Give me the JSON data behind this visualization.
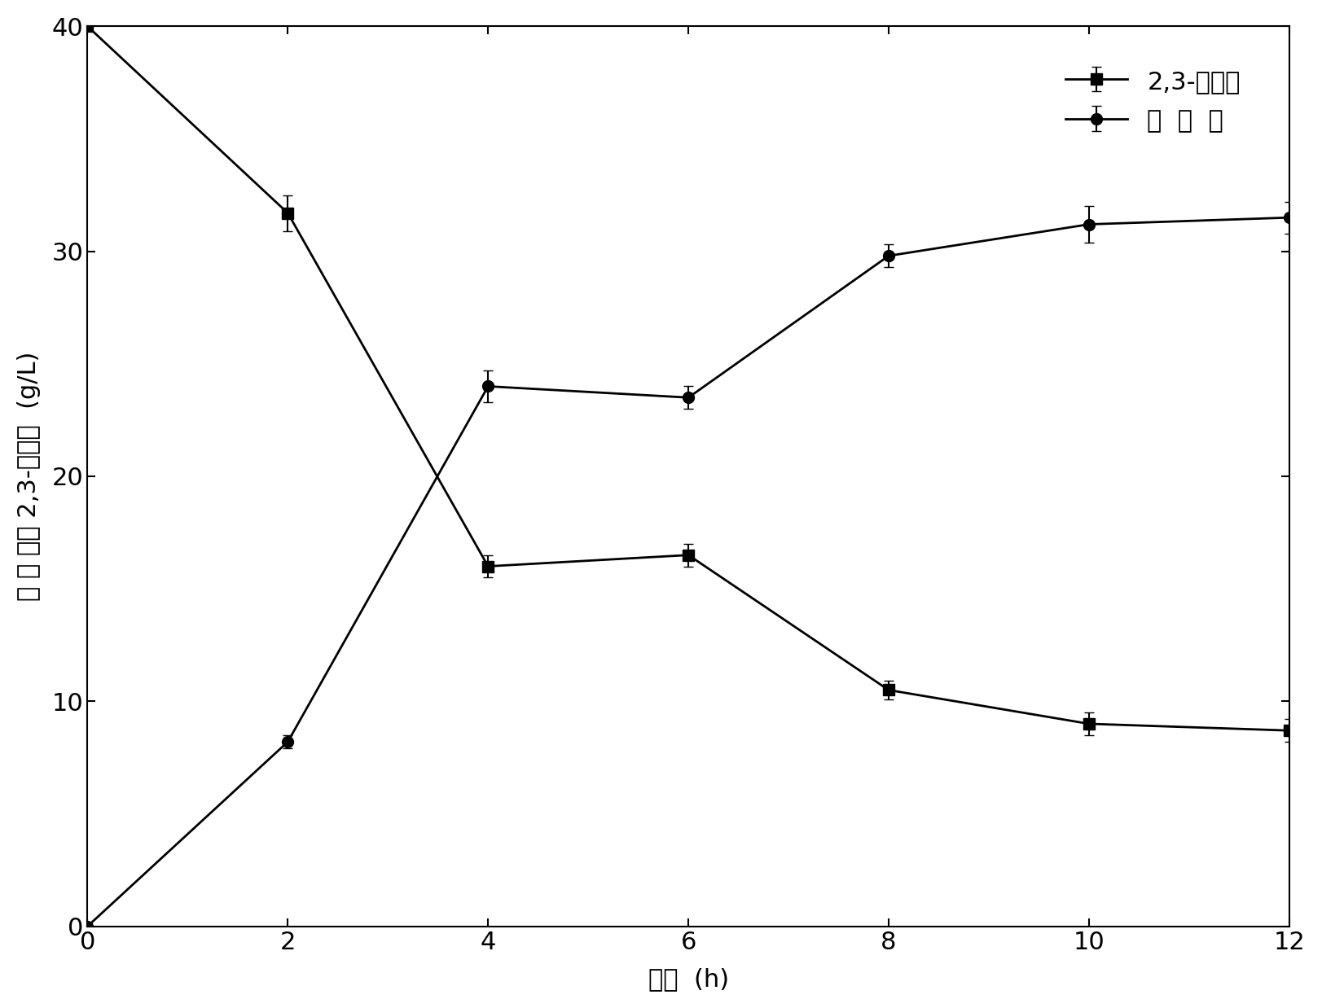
{
  "x": [
    0,
    2,
    4,
    6,
    8,
    10,
    12
  ],
  "butanediol_y": [
    40,
    31.7,
    16.0,
    16.5,
    10.5,
    9.0,
    8.7
  ],
  "butanediol_err": [
    0,
    0.8,
    0.5,
    0.5,
    0.4,
    0.5,
    0.5
  ],
  "acetoin_y": [
    0,
    8.2,
    24.0,
    23.5,
    29.8,
    31.2,
    31.5
  ],
  "acetoin_err": [
    0,
    0.3,
    0.7,
    0.5,
    0.5,
    0.8,
    0.7
  ],
  "xlim": [
    0,
    12
  ],
  "ylim": [
    0,
    40
  ],
  "xticks": [
    0,
    2,
    4,
    6,
    8,
    10,
    12
  ],
  "yticks": [
    0,
    10,
    20,
    30,
    40
  ],
  "xlabel": "时间  (h)",
  "ylabel": "乙 偶 姻和 2,3-丁二醇  (g/L)",
  "legend_butanediol": "2,3-丁二醇",
  "legend_acetoin": "乙  偶  姻",
  "line_color": "#000000",
  "bg_color": "#ffffff",
  "linewidth": 2.0,
  "markersize_square": 10,
  "markersize_circle": 10,
  "capsize": 4,
  "elinewidth": 1.5,
  "fontsize_tick": 22,
  "fontsize_label": 22,
  "fontsize_legend": 22
}
